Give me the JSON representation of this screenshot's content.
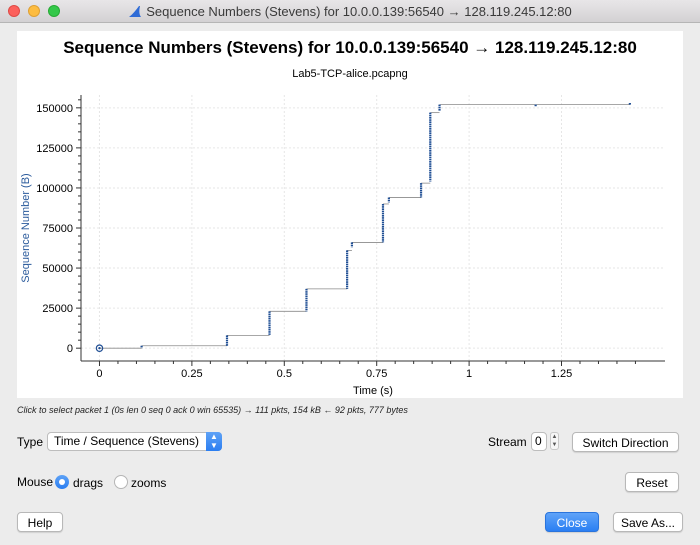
{
  "window": {
    "title": "Sequence Numbers (Stevens) for 10.0.0.139:56540 → 128.119.245.12:80",
    "colors": {
      "close": "#fc605c",
      "minimize": "#fdbc40",
      "zoom": "#34c84a"
    }
  },
  "chart_data": {
    "type": "scatter",
    "title": "Sequence Numbers (Stevens) for 10.0.0.139:56540 → 128.119.245.12:80",
    "subtitle": "Lab5-TCP-alice.pcapng",
    "xlabel": "Time (s)",
    "ylabel": "Sequence Number (B)",
    "xlim": [
      -0.05,
      1.53
    ],
    "ylim": [
      -8000,
      158000
    ],
    "xticks": [
      0,
      0.25,
      0.5,
      0.75,
      1,
      1.25
    ],
    "xtick_labels": [
      "0",
      "0.25",
      "0.5",
      "0.75",
      "1",
      "1.25"
    ],
    "yticks": [
      0,
      25000,
      50000,
      75000,
      100000,
      125000,
      150000
    ],
    "ytick_labels": [
      "0",
      "25000",
      "50000",
      "75000",
      "100000",
      "125000",
      "150000"
    ],
    "grid": true,
    "series_color": "#1f4e94",
    "selected_point": {
      "x": 0,
      "y": 0
    },
    "segments": [
      {
        "x": 0.114,
        "y_from": 0,
        "y_to": 1500
      },
      {
        "x": 0.345,
        "y_from": 1500,
        "y_to": 8000
      },
      {
        "x": 0.46,
        "y_from": 8000,
        "y_to": 23000
      },
      {
        "x": 0.56,
        "y_from": 23000,
        "y_to": 37000
      },
      {
        "x": 0.67,
        "y_from": 37000,
        "y_to": 61000
      },
      {
        "x": 0.683,
        "y_from": 63000,
        "y_to": 66000
      },
      {
        "x": 0.767,
        "y_from": 66000,
        "y_to": 90000
      },
      {
        "x": 0.783,
        "y_from": 91000,
        "y_to": 94000
      },
      {
        "x": 0.87,
        "y_from": 94000,
        "y_to": 103000
      },
      {
        "x": 0.895,
        "y_from": 104000,
        "y_to": 147000
      },
      {
        "x": 0.92,
        "y_from": 148000,
        "y_to": 152000
      },
      {
        "x": 1.18,
        "y_from": 151000,
        "y_to": 152000
      },
      {
        "x": 1.435,
        "y_from": 152000,
        "y_to": 153000
      }
    ]
  },
  "hint": "Click to select packet 1 (0s len 0 seq 0 ack 0 win 65535) → 111 pkts, 154 kB ← 92 pkts, 777 bytes",
  "controls": {
    "type_label": "Type",
    "type_value": "Time / Sequence (Stevens)",
    "stream_label": "Stream",
    "stream_value": "0",
    "switch_direction": "Switch Direction",
    "mouse_label": "Mouse",
    "drags_label": "drags",
    "zooms_label": "zooms",
    "mouse_mode": "drags",
    "reset": "Reset",
    "help": "Help",
    "close": "Close",
    "save_as": "Save As..."
  }
}
